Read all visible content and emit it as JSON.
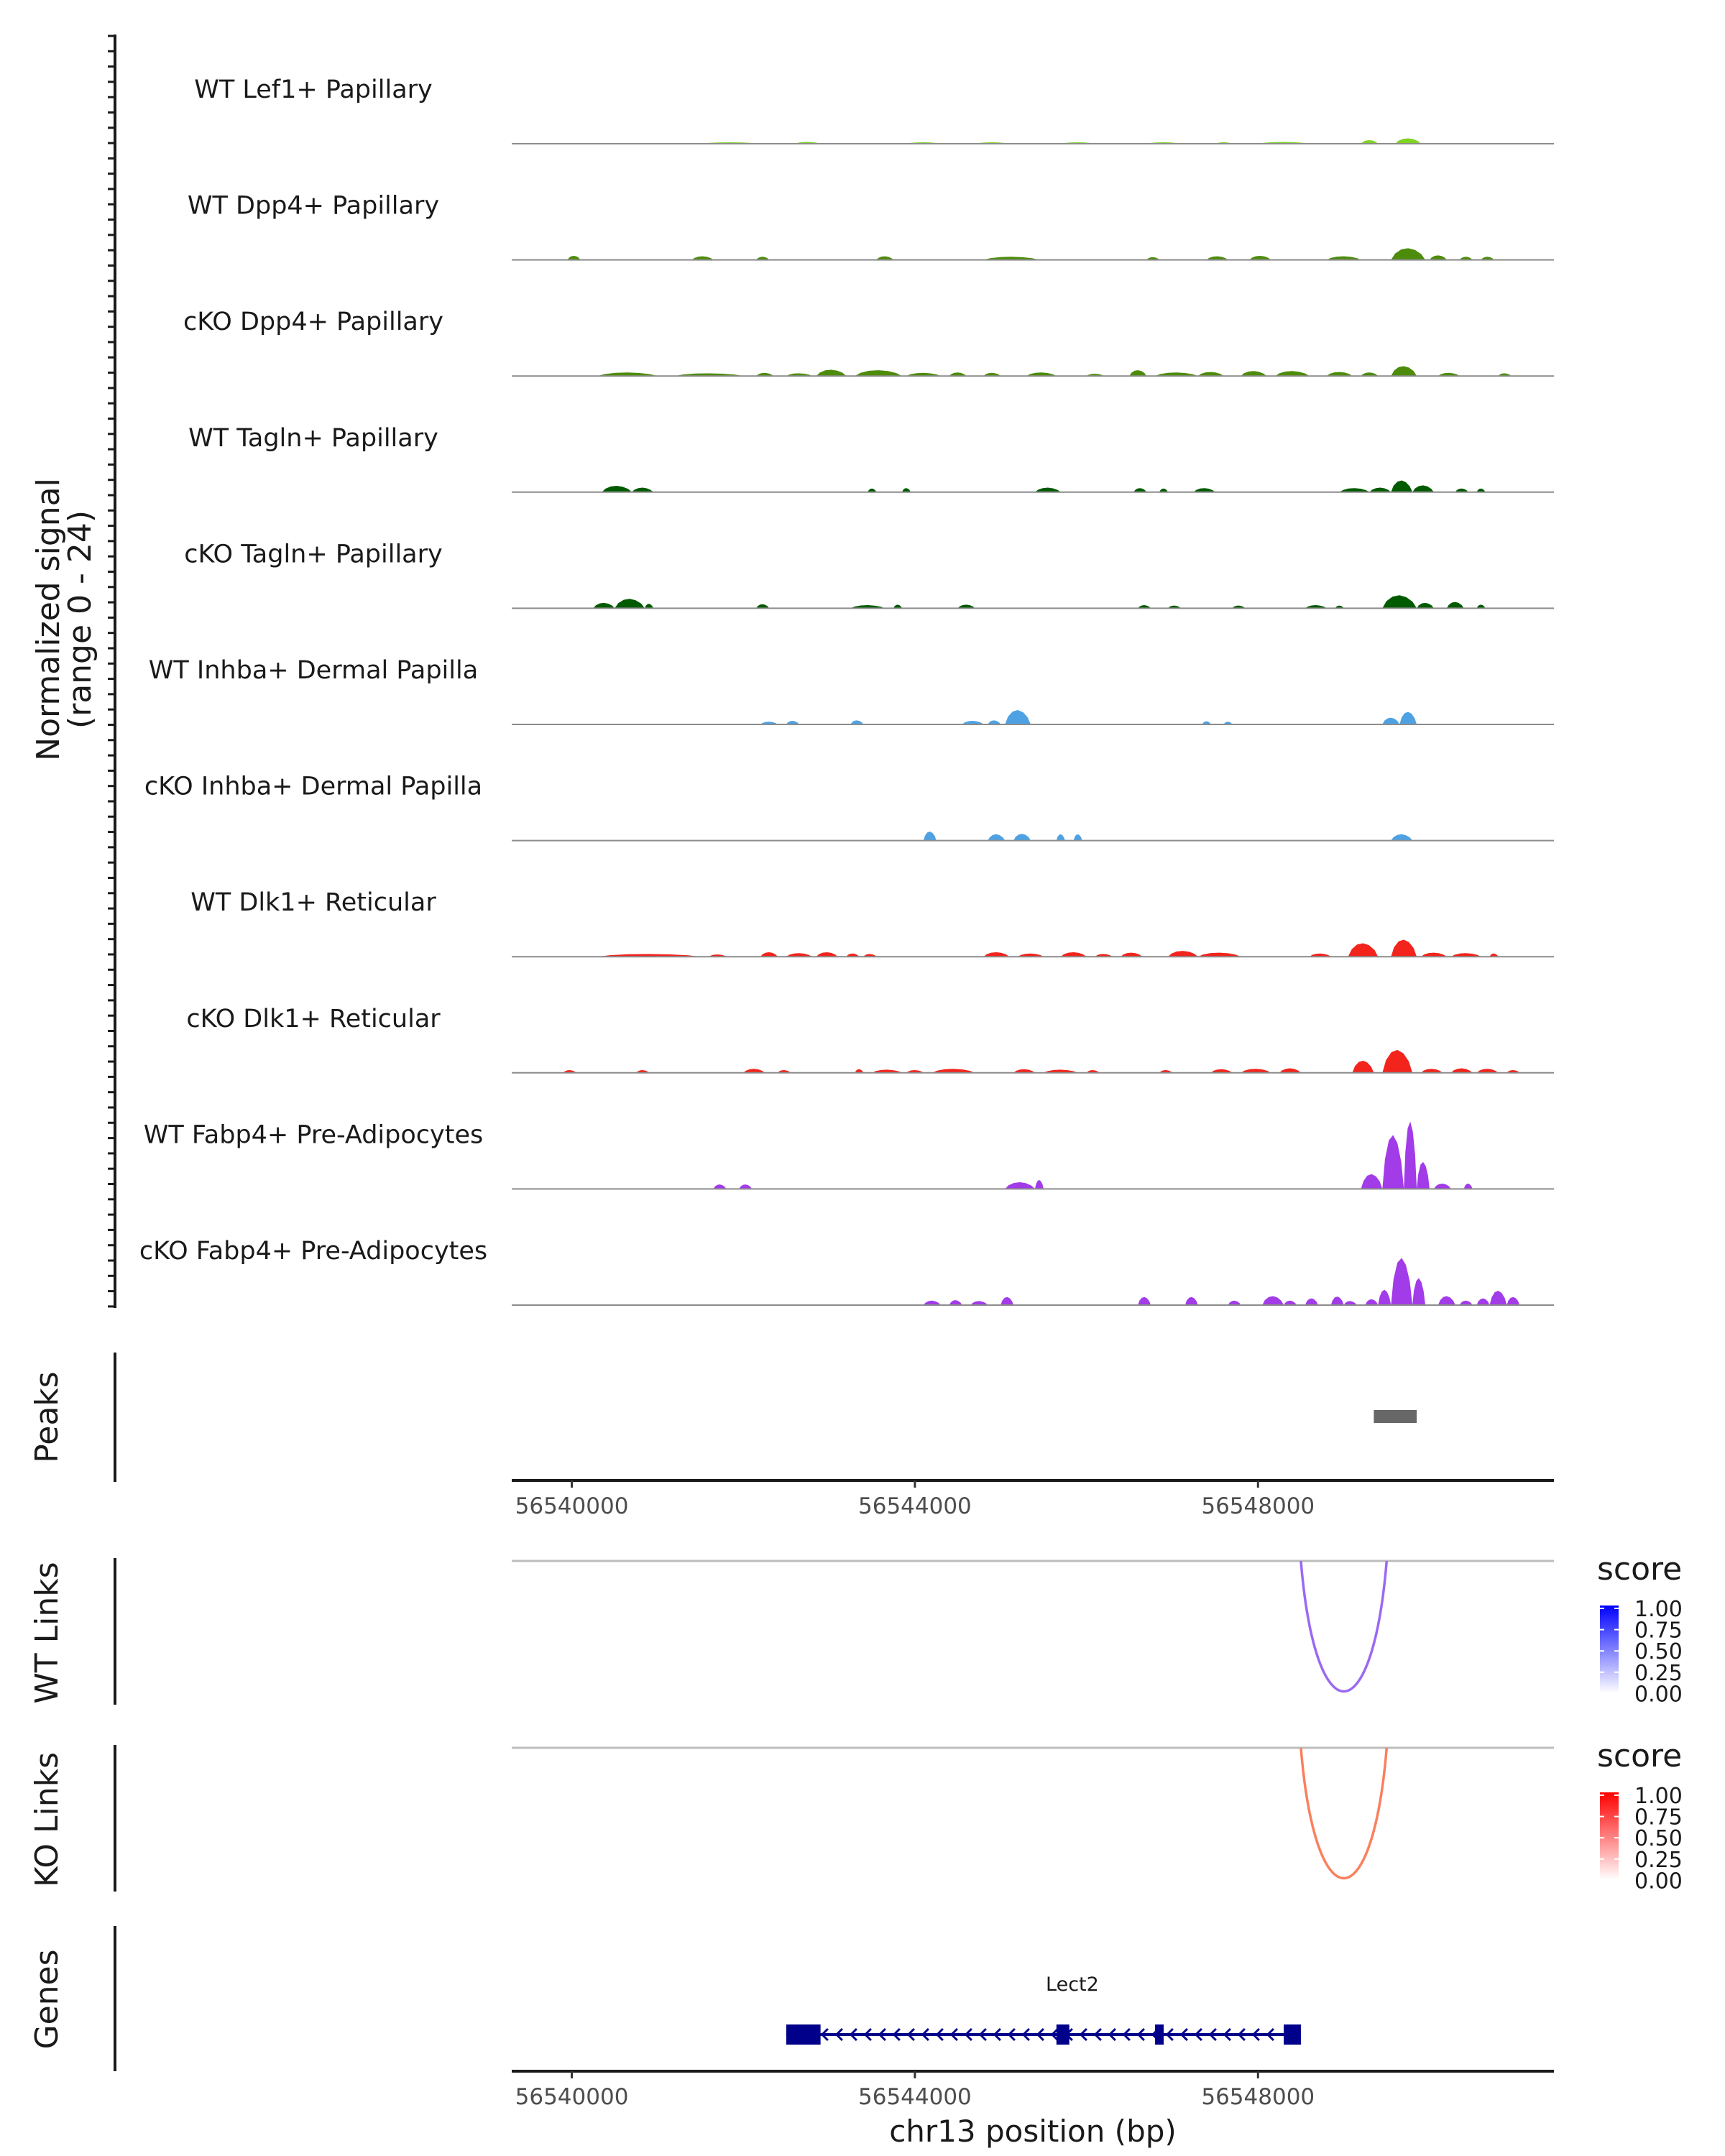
{
  "chart_data": {
    "type": "area",
    "chromosome": "chr13",
    "xlabel": "chr13 position (bp)",
    "xlim": [
      56539300,
      56551450
    ],
    "x_ticks": [
      56540000,
      56544000,
      56548000
    ],
    "x_tick_labels": [
      "56540000",
      "56544000",
      "56548000"
    ],
    "coverage": {
      "ylabel_line1": "Normalized signal",
      "ylabel_line2": "(range 0 - 24)",
      "ylim": [
        0,
        24
      ],
      "tracks": [
        {
          "name": "WT Lef1+ Papillary",
          "color": "#7fd321",
          "segments": [
            [
              56541500,
              56542200,
              0.3
            ],
            [
              56542600,
              56542900,
              0.4
            ],
            [
              56543900,
              56544300,
              0.3
            ],
            [
              56544700,
              56545100,
              0.3
            ],
            [
              56545700,
              56546100,
              0.3
            ],
            [
              56546700,
              56547100,
              0.3
            ],
            [
              56547500,
              56547700,
              0.3
            ],
            [
              56548000,
              56548600,
              0.4
            ],
            [
              56549200,
              56549400,
              0.8
            ],
            [
              56549600,
              56549900,
              1.2
            ]
          ]
        },
        {
          "name": "WT Dpp4+ Papillary",
          "color": "#4d8c0a",
          "segments": [
            [
              56539950,
              56540100,
              0.9
            ],
            [
              56541400,
              56541650,
              0.8
            ],
            [
              56542150,
              56542300,
              0.7
            ],
            [
              56543550,
              56543750,
              0.8
            ],
            [
              56544800,
              56545450,
              0.7
            ],
            [
              56546700,
              56546850,
              0.6
            ],
            [
              56547400,
              56547650,
              0.8
            ],
            [
              56547900,
              56548150,
              0.9
            ],
            [
              56548800,
              56549200,
              0.8
            ],
            [
              56549550,
              56549950,
              2.6
            ],
            [
              56550000,
              56550200,
              1.0
            ],
            [
              56550350,
              56550500,
              0.7
            ],
            [
              56550600,
              56550750,
              0.7
            ]
          ]
        },
        {
          "name": "cKO Dpp4+ Papillary",
          "color": "#4d8c0a",
          "segments": [
            [
              56540300,
              56541000,
              0.8
            ],
            [
              56541200,
              56542000,
              0.6
            ],
            [
              56542150,
              56542350,
              0.7
            ],
            [
              56542500,
              56542800,
              0.6
            ],
            [
              56542850,
              56543200,
              1.4
            ],
            [
              56543300,
              56543850,
              1.3
            ],
            [
              56543900,
              56544300,
              0.7
            ],
            [
              56544400,
              56544600,
              0.8
            ],
            [
              56544800,
              56545000,
              0.7
            ],
            [
              56545300,
              56545650,
              0.8
            ],
            [
              56546000,
              56546200,
              0.5
            ],
            [
              56546500,
              56546700,
              1.3
            ],
            [
              56546800,
              56547300,
              0.8
            ],
            [
              56547300,
              56547600,
              0.9
            ],
            [
              56547800,
              56548100,
              1.1
            ],
            [
              56548200,
              56548600,
              1.1
            ],
            [
              56548800,
              56549100,
              0.9
            ],
            [
              56549200,
              56549400,
              0.8
            ],
            [
              56549550,
              56549850,
              2.2
            ],
            [
              56550100,
              56550350,
              0.7
            ],
            [
              56550800,
              56550950,
              0.6
            ]
          ]
        },
        {
          "name": "WT Tagln+ Papillary",
          "color": "#005a00",
          "segments": [
            [
              56540350,
              56540700,
              1.4
            ],
            [
              56540700,
              56540950,
              1.0
            ],
            [
              56543450,
              56543550,
              0.8
            ],
            [
              56543850,
              56543950,
              0.9
            ],
            [
              56545400,
              56545700,
              1.0
            ],
            [
              56546550,
              56546700,
              0.9
            ],
            [
              56546850,
              56546950,
              0.8
            ],
            [
              56547250,
              56547500,
              0.9
            ],
            [
              56548950,
              56549300,
              0.9
            ],
            [
              56549300,
              56549550,
              1.0
            ],
            [
              56549550,
              56549800,
              2.6
            ],
            [
              56549800,
              56550050,
              1.5
            ],
            [
              56550300,
              56550450,
              0.8
            ],
            [
              56550550,
              56550650,
              0.8
            ]
          ]
        },
        {
          "name": "cKO Tagln+ Papillary",
          "color": "#005a00",
          "segments": [
            [
              56540250,
              56540500,
              1.2
            ],
            [
              56540500,
              56540850,
              2.1
            ],
            [
              56540850,
              56540950,
              1.0
            ],
            [
              56542150,
              56542300,
              0.9
            ],
            [
              56543250,
              56543650,
              0.7
            ],
            [
              56543750,
              56543850,
              0.8
            ],
            [
              56544500,
              56544700,
              0.8
            ],
            [
              56546600,
              56546750,
              0.7
            ],
            [
              56546950,
              56547100,
              0.6
            ],
            [
              56547700,
              56547850,
              0.6
            ],
            [
              56548550,
              56548800,
              0.7
            ],
            [
              56548900,
              56549000,
              0.6
            ],
            [
              56549450,
              56549850,
              2.9
            ],
            [
              56549850,
              56550050,
              1.2
            ],
            [
              56550200,
              56550400,
              1.4
            ],
            [
              56550550,
              56550650,
              0.8
            ]
          ]
        },
        {
          "name": "WT Inhba+ Dermal Papilla",
          "color": "#4ea2e3",
          "segments": [
            [
              56542200,
              56542400,
              0.6
            ],
            [
              56542500,
              56542650,
              0.8
            ],
            [
              56543250,
              56543400,
              0.9
            ],
            [
              56544550,
              56544800,
              0.8
            ],
            [
              56544850,
              56545000,
              0.9
            ],
            [
              56545050,
              56545350,
              3.2
            ],
            [
              56547350,
              56547450,
              0.7
            ],
            [
              56547600,
              56547700,
              0.6
            ],
            [
              56549450,
              56549650,
              1.5
            ],
            [
              56549650,
              56549850,
              2.8
            ]
          ]
        },
        {
          "name": "cKO Inhba+ Dermal Papilla",
          "color": "#4ea2e3",
          "segments": [
            [
              56544100,
              56544250,
              2.0
            ],
            [
              56544850,
              56545050,
              1.4
            ],
            [
              56545150,
              56545350,
              1.5
            ],
            [
              56545650,
              56545750,
              1.4
            ],
            [
              56545850,
              56545950,
              1.4
            ],
            [
              56549550,
              56549800,
              1.4
            ]
          ]
        },
        {
          "name": "WT Dlk1+ Reticular",
          "color": "#f2241c",
          "segments": [
            [
              56540300,
              56541500,
              0.6
            ],
            [
              56541600,
              56541800,
              0.5
            ],
            [
              56542200,
              56542400,
              1.0
            ],
            [
              56542500,
              56542800,
              0.8
            ],
            [
              56542850,
              56543100,
              1.0
            ],
            [
              56543200,
              56543350,
              0.7
            ],
            [
              56543400,
              56543550,
              0.6
            ],
            [
              56544800,
              56545100,
              1.0
            ],
            [
              56545200,
              56545500,
              0.7
            ],
            [
              56545700,
              56546000,
              1.0
            ],
            [
              56546100,
              56546300,
              0.6
            ],
            [
              56546400,
              56546650,
              0.9
            ],
            [
              56546950,
              56547300,
              1.3
            ],
            [
              56547300,
              56547800,
              0.9
            ],
            [
              56548600,
              56548850,
              0.7
            ],
            [
              56549050,
              56549400,
              3.0
            ],
            [
              56549550,
              56549850,
              3.8
            ],
            [
              56549900,
              56550200,
              0.9
            ],
            [
              56550250,
              56550600,
              0.8
            ],
            [
              56550700,
              56550800,
              0.7
            ]
          ]
        },
        {
          "name": "cKO Dlk1+ Reticular",
          "color": "#f2241c",
          "segments": [
            [
              56539900,
              56540050,
              0.6
            ],
            [
              56540750,
              56540900,
              0.6
            ],
            [
              56542000,
              56542250,
              0.9
            ],
            [
              56542400,
              56542550,
              0.6
            ],
            [
              56543300,
              56543400,
              0.8
            ],
            [
              56543500,
              56543850,
              0.7
            ],
            [
              56543900,
              56544100,
              0.6
            ],
            [
              56544200,
              56544700,
              0.9
            ],
            [
              56545150,
              56545400,
              0.8
            ],
            [
              56545500,
              56545900,
              0.7
            ],
            [
              56546000,
              56546150,
              0.6
            ],
            [
              56546850,
              56547000,
              0.6
            ],
            [
              56547450,
              56547700,
              0.8
            ],
            [
              56547800,
              56548150,
              0.9
            ],
            [
              56548250,
              56548500,
              1.0
            ],
            [
              56549100,
              56549350,
              2.7
            ],
            [
              56549450,
              56549800,
              5.1
            ],
            [
              56549900,
              56550150,
              0.9
            ],
            [
              56550250,
              56550500,
              1.0
            ],
            [
              56550550,
              56550800,
              0.9
            ],
            [
              56550900,
              56551050,
              0.6
            ]
          ]
        },
        {
          "name": "WT Fabp4+ Pre-Adipocytes",
          "color": "#a23be8",
          "segments": [
            [
              56541650,
              56541800,
              1.0
            ],
            [
              56541950,
              56542100,
              1.0
            ],
            [
              56545050,
              56545400,
              1.5
            ],
            [
              56545400,
              56545500,
              2.0
            ],
            [
              56549200,
              56549450,
              3.3
            ],
            [
              56549450,
              56549700,
              12.0
            ],
            [
              56549700,
              56549850,
              15.0
            ],
            [
              56549850,
              56550000,
              6.0
            ],
            [
              56550050,
              56550250,
              1.2
            ],
            [
              56550400,
              56550500,
              1.2
            ]
          ]
        },
        {
          "name": "cKO Fabp4+ Pre-Adipocytes",
          "color": "#a23be8",
          "segments": [
            [
              56544100,
              56544300,
              1.0
            ],
            [
              56544400,
              56544550,
              1.1
            ],
            [
              56544650,
              56544850,
              0.9
            ],
            [
              56545000,
              56545150,
              1.8
            ],
            [
              56546600,
              56546750,
              1.8
            ],
            [
              56547150,
              56547300,
              1.8
            ],
            [
              56547650,
              56547800,
              1.0
            ],
            [
              56548050,
              56548300,
              2.0
            ],
            [
              56548300,
              56548450,
              1.0
            ],
            [
              56548550,
              56548700,
              1.5
            ],
            [
              56548850,
              56549000,
              1.9
            ],
            [
              56549000,
              56549150,
              0.9
            ],
            [
              56549250,
              56549400,
              1.3
            ],
            [
              56549400,
              56549550,
              3.4
            ],
            [
              56549550,
              56549800,
              10.5
            ],
            [
              56549800,
              56549950,
              6.0
            ],
            [
              56550100,
              56550300,
              2.0
            ],
            [
              56550350,
              56550500,
              1.0
            ],
            [
              56550550,
              56550700,
              1.5
            ],
            [
              56550700,
              56550900,
              3.2
            ],
            [
              56550900,
              56551050,
              1.8
            ]
          ]
        }
      ]
    },
    "peaks": {
      "label": "Peaks",
      "color": "#676767",
      "regions": [
        [
          56549350,
          56549850
        ]
      ]
    },
    "links": [
      {
        "label": "WT Links",
        "color": "#9b69f1",
        "legend_title": "score",
        "legend_ticks": [
          "1.00",
          "0.75",
          "0.50",
          "0.25",
          "0.00"
        ],
        "legend_low": "#ffffff",
        "legend_high": "#0000ff",
        "arcs": [
          {
            "start": 56548500,
            "end": 56549500,
            "score": 0.62
          }
        ]
      },
      {
        "label": "KO Links",
        "color": "#f9805e",
        "legend_title": "score",
        "legend_ticks": [
          "1.00",
          "0.75",
          "0.50",
          "0.25",
          "0.00"
        ],
        "legend_low": "#ffffff",
        "legend_high": "#ff0000",
        "arcs": [
          {
            "start": 56548500,
            "end": 56549500,
            "score": 0.62
          }
        ]
      }
    ],
    "genes": {
      "label": "Genes",
      "color": "#00008b",
      "items": [
        {
          "name": "Lect2",
          "strand": "-",
          "start": 56542500,
          "end": 56548500,
          "exons": [
            [
              56542500,
              56542900
            ],
            [
              56545650,
              56545800
            ],
            [
              56546800,
              56546900
            ],
            [
              56548300,
              56548500
            ]
          ]
        }
      ]
    }
  }
}
